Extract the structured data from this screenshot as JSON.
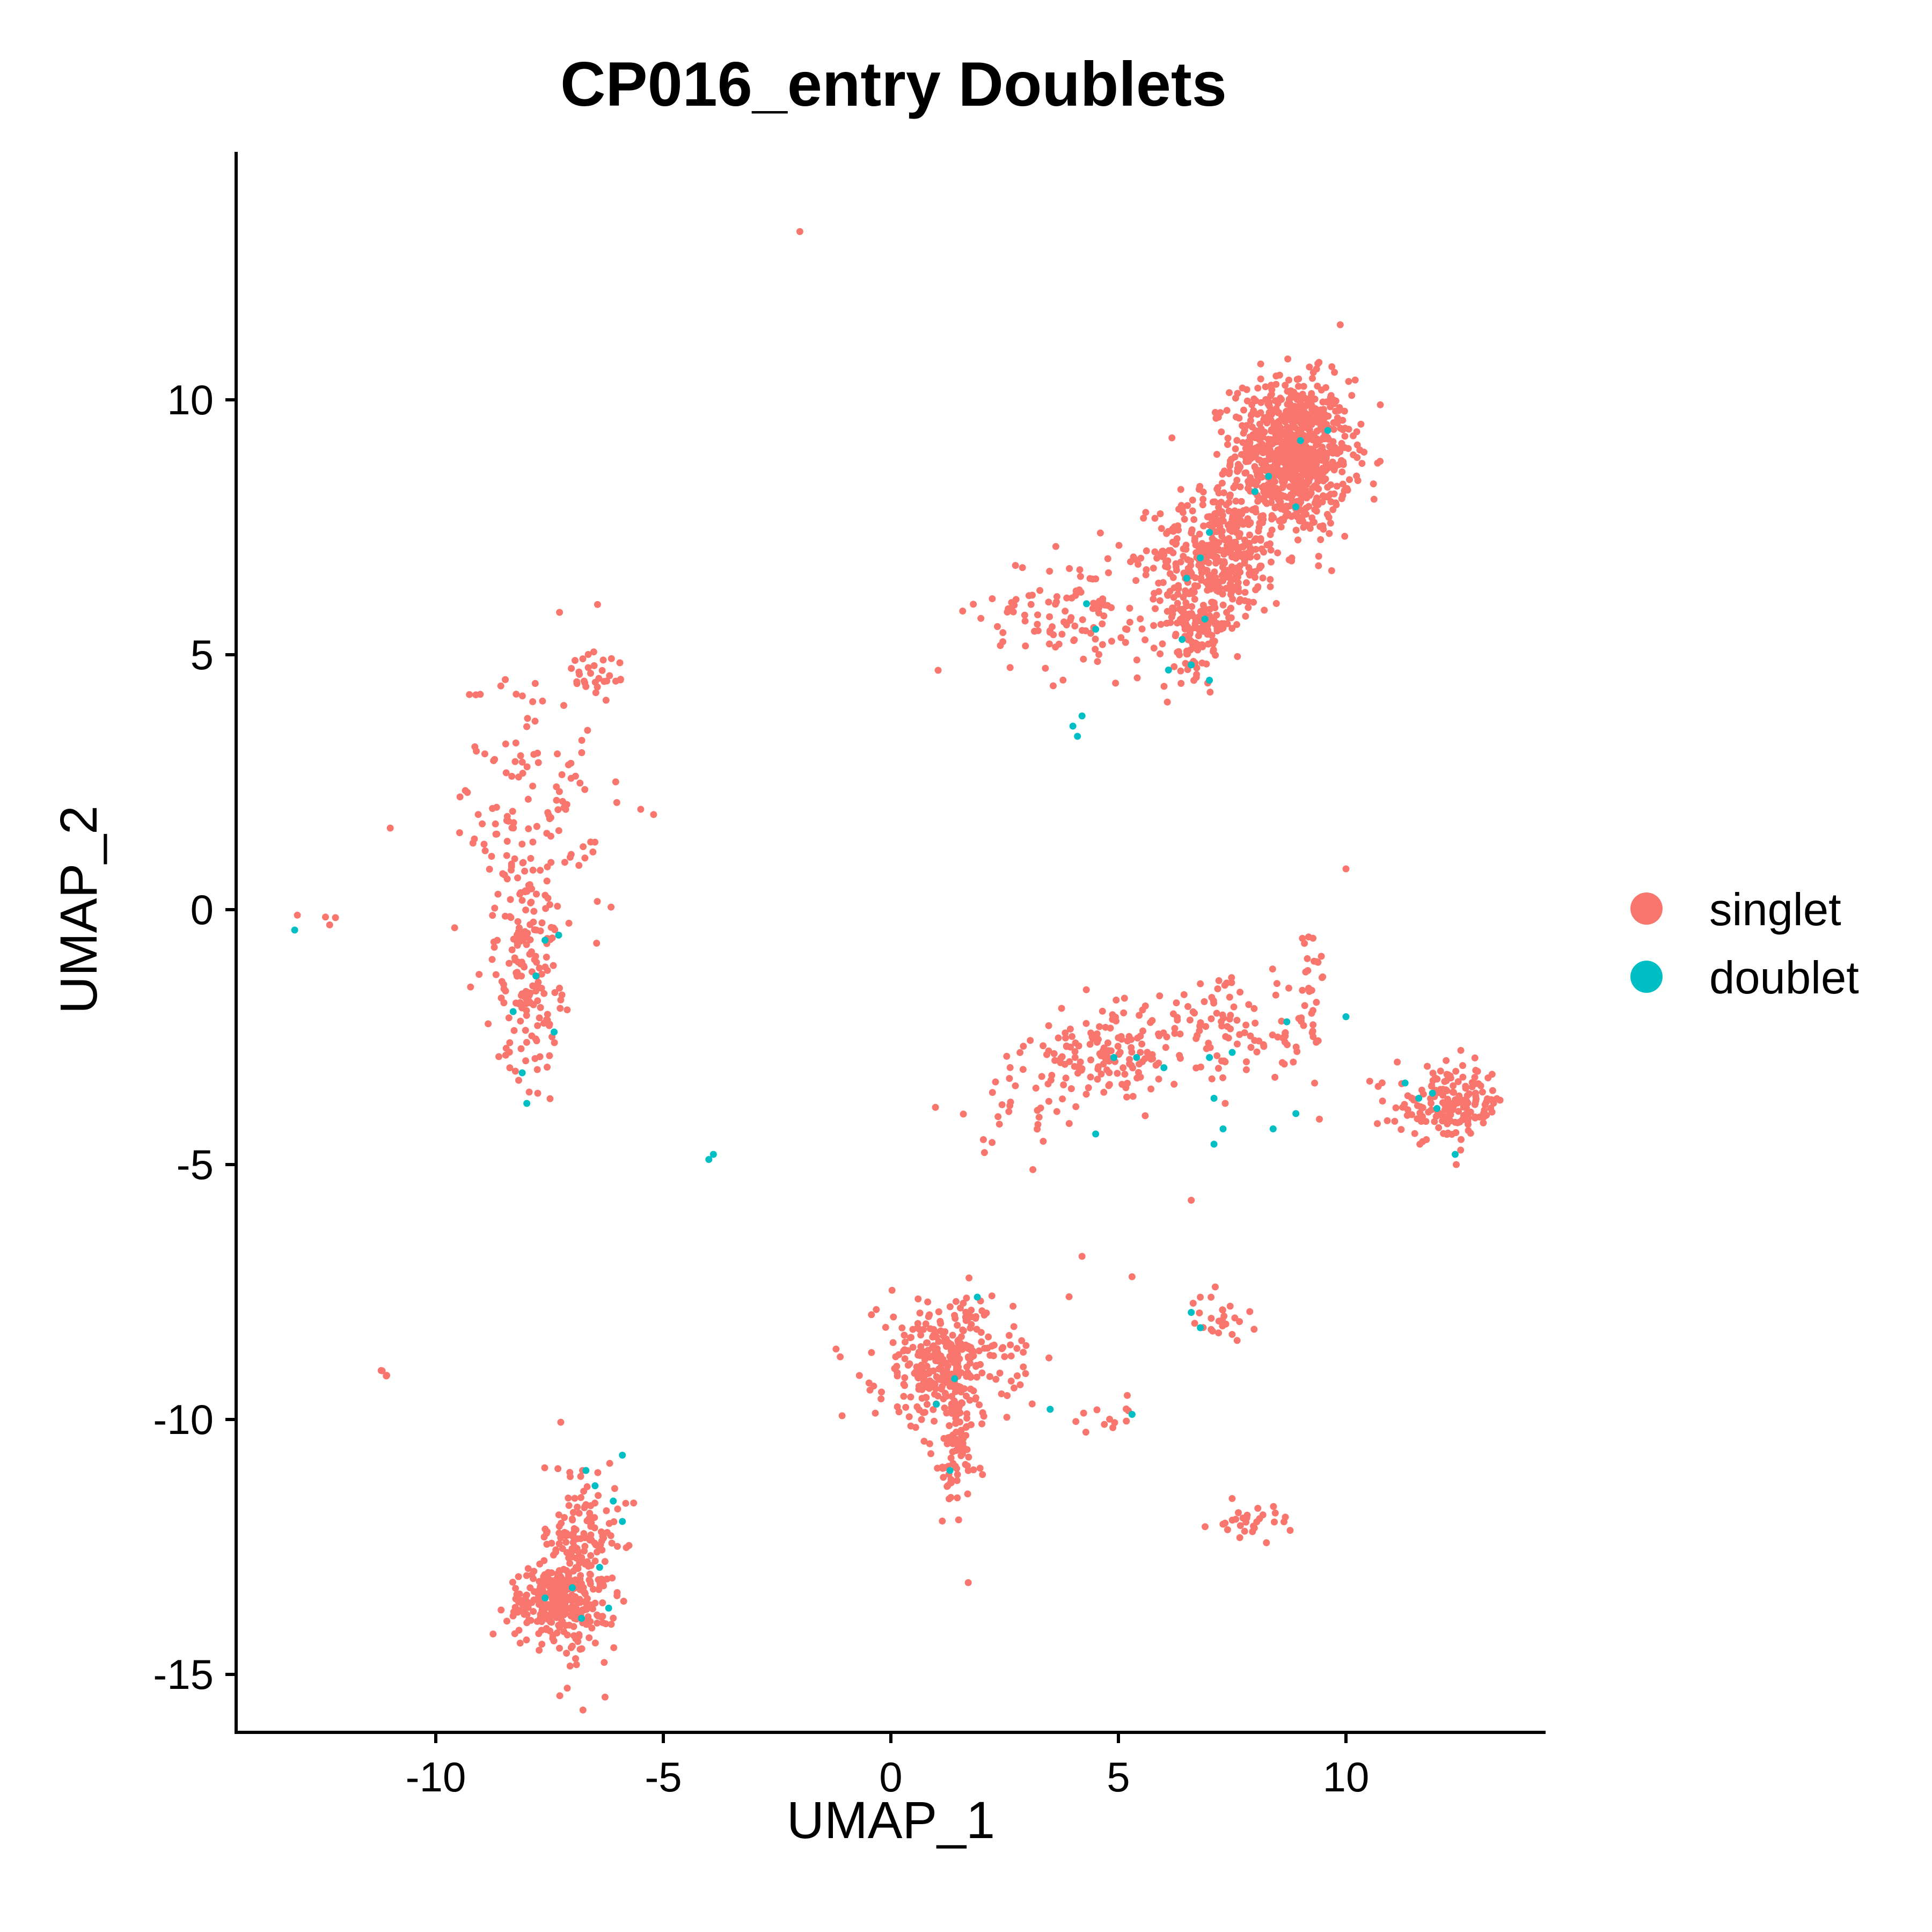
{
  "chart_data": {
    "type": "scatter",
    "title": "CP016_entry Doublets",
    "xlabel": "UMAP_1",
    "ylabel": "UMAP_2",
    "xlim": [
      -14.5,
      14.3
    ],
    "ylim": [
      -16.1,
      14.8
    ],
    "x_ticks": [
      -10,
      -5,
      0,
      5,
      10
    ],
    "y_ticks": [
      10,
      5,
      0,
      -5,
      -10,
      -15
    ],
    "x_tick_labels": [
      "-10",
      "-5",
      "0",
      "5",
      "10"
    ],
    "y_tick_labels": [
      "10",
      "5",
      "0",
      "-5",
      "-10",
      "-15"
    ],
    "grid": false,
    "legend_position": "right",
    "series": [
      {
        "name": "singlet",
        "color": "#F8766D",
        "clusters": [
          {
            "cx": 8.8,
            "cy": 8.9,
            "sx": 0.65,
            "sy": 0.75,
            "n": 900
          },
          {
            "cx": 7.2,
            "cy": 7.0,
            "sx": 0.7,
            "sy": 0.6,
            "n": 350
          },
          {
            "cx": 6.7,
            "cy": 5.6,
            "sx": 0.4,
            "sy": 0.5,
            "n": 150
          },
          {
            "cx": 4.0,
            "cy": 5.8,
            "sx": 1.0,
            "sy": 0.6,
            "n": 120
          },
          {
            "cx": -7.8,
            "cy": 2.0,
            "sx": 0.9,
            "sy": 1.6,
            "n": 130
          },
          {
            "cx": -8.0,
            "cy": -1.0,
            "sx": 0.35,
            "sy": 1.1,
            "n": 170
          },
          {
            "cx": -6.5,
            "cy": 4.6,
            "sx": 0.35,
            "sy": 0.3,
            "n": 25
          },
          {
            "cx": -6.8,
            "cy": -12.8,
            "sx": 0.4,
            "sy": 1.0,
            "n": 220
          },
          {
            "cx": -7.4,
            "cy": -13.6,
            "sx": 0.5,
            "sy": 0.35,
            "n": 230
          },
          {
            "cx": 1.2,
            "cy": -8.9,
            "sx": 0.75,
            "sy": 0.6,
            "n": 330
          },
          {
            "cx": 1.4,
            "cy": -10.5,
            "sx": 0.25,
            "sy": 0.8,
            "n": 90
          },
          {
            "cx": 4.8,
            "cy": -2.8,
            "sx": 0.9,
            "sy": 0.4,
            "n": 140
          },
          {
            "cx": 7.6,
            "cy": -2.4,
            "sx": 1.1,
            "sy": 0.5,
            "n": 110
          },
          {
            "cx": 9.3,
            "cy": -1.3,
            "sx": 0.15,
            "sy": 0.4,
            "n": 18
          },
          {
            "cx": 12.3,
            "cy": -3.8,
            "sx": 0.6,
            "sy": 0.35,
            "n": 170
          },
          {
            "cx": 2.8,
            "cy": -3.8,
            "sx": 0.8,
            "sy": 0.5,
            "n": 35
          },
          {
            "cx": 7.2,
            "cy": -8.1,
            "sx": 0.3,
            "sy": 0.25,
            "n": 25
          },
          {
            "cx": 4.9,
            "cy": -9.9,
            "sx": 0.25,
            "sy": 0.15,
            "n": 12
          },
          {
            "cx": 7.9,
            "cy": -12.0,
            "sx": 0.45,
            "sy": 0.15,
            "n": 30
          },
          {
            "cx": -11.1,
            "cy": -9.1,
            "sx": 0.12,
            "sy": 0.05,
            "n": 4
          },
          {
            "cx": -12.9,
            "cy": -0.1,
            "sx": 0.3,
            "sy": 0.15,
            "n": 4
          }
        ],
        "isolated_points": [
          [
            -2.0,
            13.3
          ],
          [
            10.0,
            0.8
          ],
          [
            1.7,
            -13.2
          ],
          [
            4.2,
            -6.8
          ],
          [
            6.6,
            -5.7
          ],
          [
            3.5,
            -9.8
          ],
          [
            5.3,
            -7.2
          ],
          [
            -11.0,
            1.6
          ]
        ]
      },
      {
        "name": "doublet",
        "color": "#00BFC4",
        "points": [
          [
            9.0,
            9.2
          ],
          [
            9.6,
            9.4
          ],
          [
            8.3,
            8.5
          ],
          [
            8.0,
            8.2
          ],
          [
            8.9,
            7.9
          ],
          [
            7.0,
            7.4
          ],
          [
            6.8,
            6.9
          ],
          [
            6.5,
            6.5
          ],
          [
            6.9,
            5.7
          ],
          [
            6.4,
            5.3
          ],
          [
            6.6,
            4.8
          ],
          [
            7.0,
            4.5
          ],
          [
            6.1,
            4.7
          ],
          [
            4.3,
            6.0
          ],
          [
            4.5,
            5.5
          ],
          [
            4.2,
            3.8
          ],
          [
            4.1,
            3.4
          ],
          [
            4.0,
            3.6
          ],
          [
            -13.1,
            -0.4
          ],
          [
            -7.6,
            -0.6
          ],
          [
            -7.8,
            -1.3
          ],
          [
            -8.3,
            -2.0
          ],
          [
            -7.4,
            -2.4
          ],
          [
            -8.1,
            -3.2
          ],
          [
            -8.0,
            -3.8
          ],
          [
            -7.3,
            -0.5
          ],
          [
            -4.0,
            -4.9
          ],
          [
            -3.9,
            -4.8
          ],
          [
            -6.7,
            -11.0
          ],
          [
            -6.5,
            -11.3
          ],
          [
            -5.9,
            -10.7
          ],
          [
            -6.1,
            -11.6
          ],
          [
            -6.4,
            -12.9
          ],
          [
            -7.0,
            -13.3
          ],
          [
            -6.8,
            -13.9
          ],
          [
            -7.6,
            -13.5
          ],
          [
            -6.2,
            -13.7
          ],
          [
            -5.9,
            -12.0
          ],
          [
            1.9,
            -7.6
          ],
          [
            1.4,
            -9.2
          ],
          [
            1.0,
            -9.7
          ],
          [
            1.3,
            -11.0
          ],
          [
            3.5,
            -9.8
          ],
          [
            5.3,
            -9.9
          ],
          [
            6.6,
            -7.9
          ],
          [
            6.8,
            -8.2
          ],
          [
            4.5,
            -4.4
          ],
          [
            7.3,
            -4.3
          ],
          [
            7.1,
            -3.7
          ],
          [
            8.4,
            -4.3
          ],
          [
            8.9,
            -4.0
          ],
          [
            7.5,
            -2.8
          ],
          [
            7.0,
            -2.9
          ],
          [
            6.0,
            -3.1
          ],
          [
            5.4,
            -2.9
          ],
          [
            4.9,
            -2.9
          ],
          [
            8.7,
            -2.2
          ],
          [
            10.0,
            -2.1
          ],
          [
            11.6,
            -3.7
          ],
          [
            12.0,
            -3.9
          ],
          [
            11.3,
            -3.4
          ],
          [
            12.4,
            -4.8
          ],
          [
            11.9,
            -3.6
          ],
          [
            7.1,
            -4.6
          ]
        ]
      }
    ]
  },
  "legend": {
    "items": [
      {
        "label": "singlet",
        "color": "#F8766D"
      },
      {
        "label": "doublet",
        "color": "#00BFC4"
      }
    ]
  }
}
